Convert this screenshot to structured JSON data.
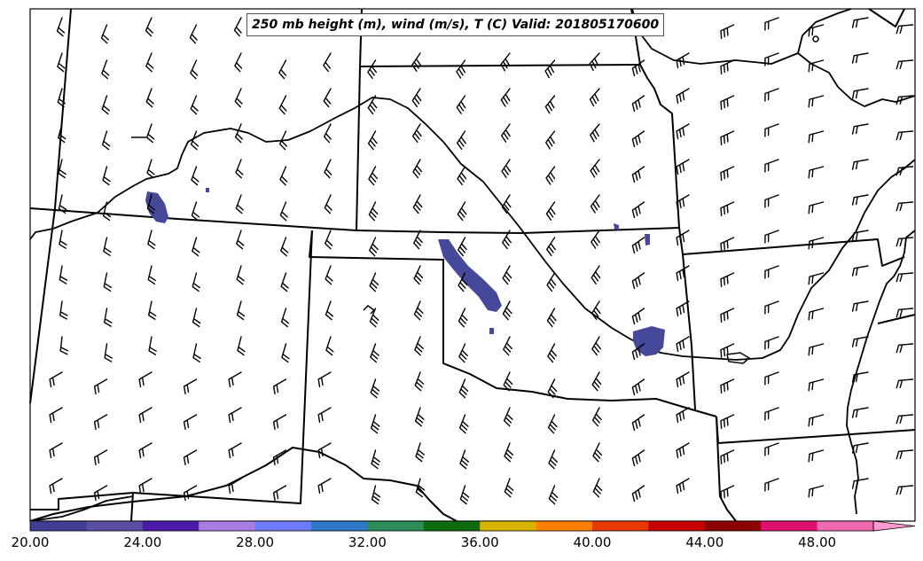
{
  "title": "250 mb height (m), wind (m/s), T (C) Valid: 201805170600",
  "colorbar": {
    "tick_labels": [
      "20.00",
      "24.00",
      "28.00",
      "32.00",
      "36.00",
      "40.00",
      "44.00",
      "48.00"
    ],
    "colors": [
      "#3f3f94",
      "#5a4fa0",
      "#4b1aa8",
      "#a87ce0",
      "#6d7bff",
      "#2f78c8",
      "#2e8b57",
      "#0e6b0e",
      "#d8b400",
      "#ff8000",
      "#e83a00",
      "#c80000",
      "#8c0000",
      "#e0106f",
      "#f06ab0",
      "#ff9ad0"
    ],
    "extend": "max"
  },
  "temperature_patch_color": "#46489a",
  "line_color": "#000000"
}
